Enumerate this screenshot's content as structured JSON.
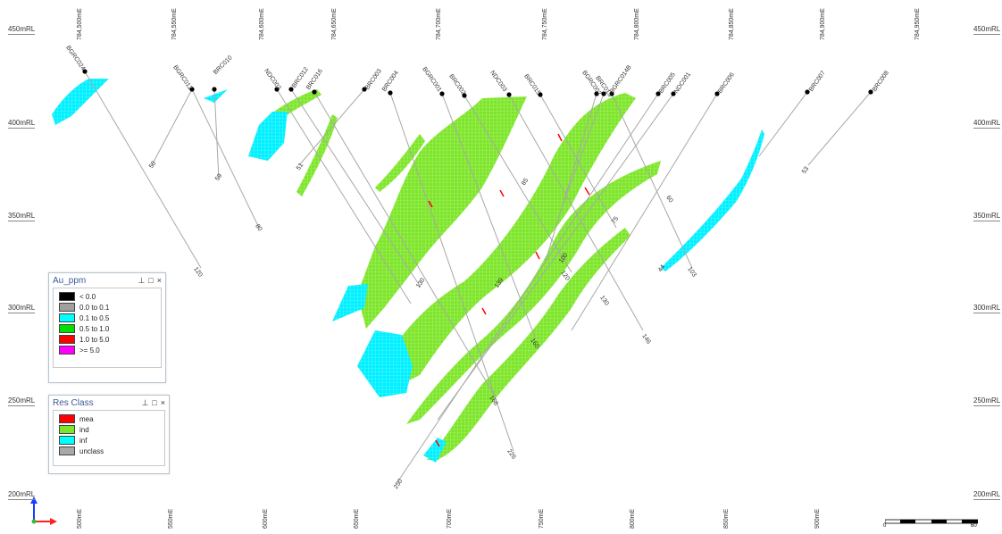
{
  "rl_labels": [
    "450mRL",
    "400mRL",
    "350mRL",
    "300mRL",
    "250mRL",
    "200mRL"
  ],
  "me_labels": [
    "784,500mE",
    "784,550mE",
    "784,600mE",
    "784,650mE",
    "784,700mE",
    "784,750mE",
    "784,800mE",
    "784,850mE",
    "784,900mE",
    "784,950mE"
  ],
  "me_bottom_labels": [
    "500mE",
    "550mE",
    "600mE",
    "650mE",
    "700mE",
    "750mE",
    "800mE",
    "850mE",
    "900mE"
  ],
  "holes": [
    {
      "label": "BGRC024"
    },
    {
      "label": "BGRC012"
    },
    {
      "label": "BRC010"
    },
    {
      "label": "NDC002"
    },
    {
      "label": "BRC012"
    },
    {
      "label": "BRC016"
    },
    {
      "label": "BRC003"
    },
    {
      "label": "BRC004"
    },
    {
      "label": "BGRC001"
    },
    {
      "label": "BRC002"
    },
    {
      "label": "NDC003"
    },
    {
      "label": "BRC015"
    },
    {
      "label": "BGRC002"
    },
    {
      "label": "BRC013"
    },
    {
      "label": "BGRC014B"
    },
    {
      "label": "BRC005"
    },
    {
      "label": "NDC001"
    },
    {
      "label": "BRC006"
    },
    {
      "label": "BRC007"
    },
    {
      "label": "BRC008"
    }
  ],
  "depths": [
    "120",
    "50",
    "80",
    "59",
    "51",
    "60",
    "103",
    "53",
    "146",
    "130",
    "130",
    "120",
    "100",
    "139",
    "75",
    "85",
    "44",
    "160",
    "166",
    "226",
    "250"
  ],
  "legend_au": {
    "title": "Au_ppm",
    "items": [
      {
        "label": "< 0.0",
        "color": "#000000"
      },
      {
        "label": "0.0 to 0.1",
        "color": "#a0a0a0"
      },
      {
        "label": "0.1 to 0.5",
        "color": "#00ffff"
      },
      {
        "label": "0.5 to 1.0",
        "color": "#00e000"
      },
      {
        "label": "1.0 to 5.0",
        "color": "#ff0000"
      },
      {
        "label": ">= 5.0",
        "color": "#ff00ff"
      }
    ]
  },
  "legend_res": {
    "title": "Res Class",
    "items": [
      {
        "label": "mea",
        "color": "#ff0000"
      },
      {
        "label": "ind",
        "color": "#7ee62a"
      },
      {
        "label": "inf",
        "color": "#00ffff"
      },
      {
        "label": "unclass",
        "color": "#a8a8a8"
      }
    ]
  },
  "panel_tools": {
    "pin": "⊥",
    "max": "□",
    "close": "×"
  },
  "scalebar": {
    "start": "0",
    "end": "60"
  },
  "colors": {
    "ind": "#7ee62a",
    "inf": "#00ffff",
    "mea": "#ff0000",
    "trace": "#a8a8a8"
  }
}
